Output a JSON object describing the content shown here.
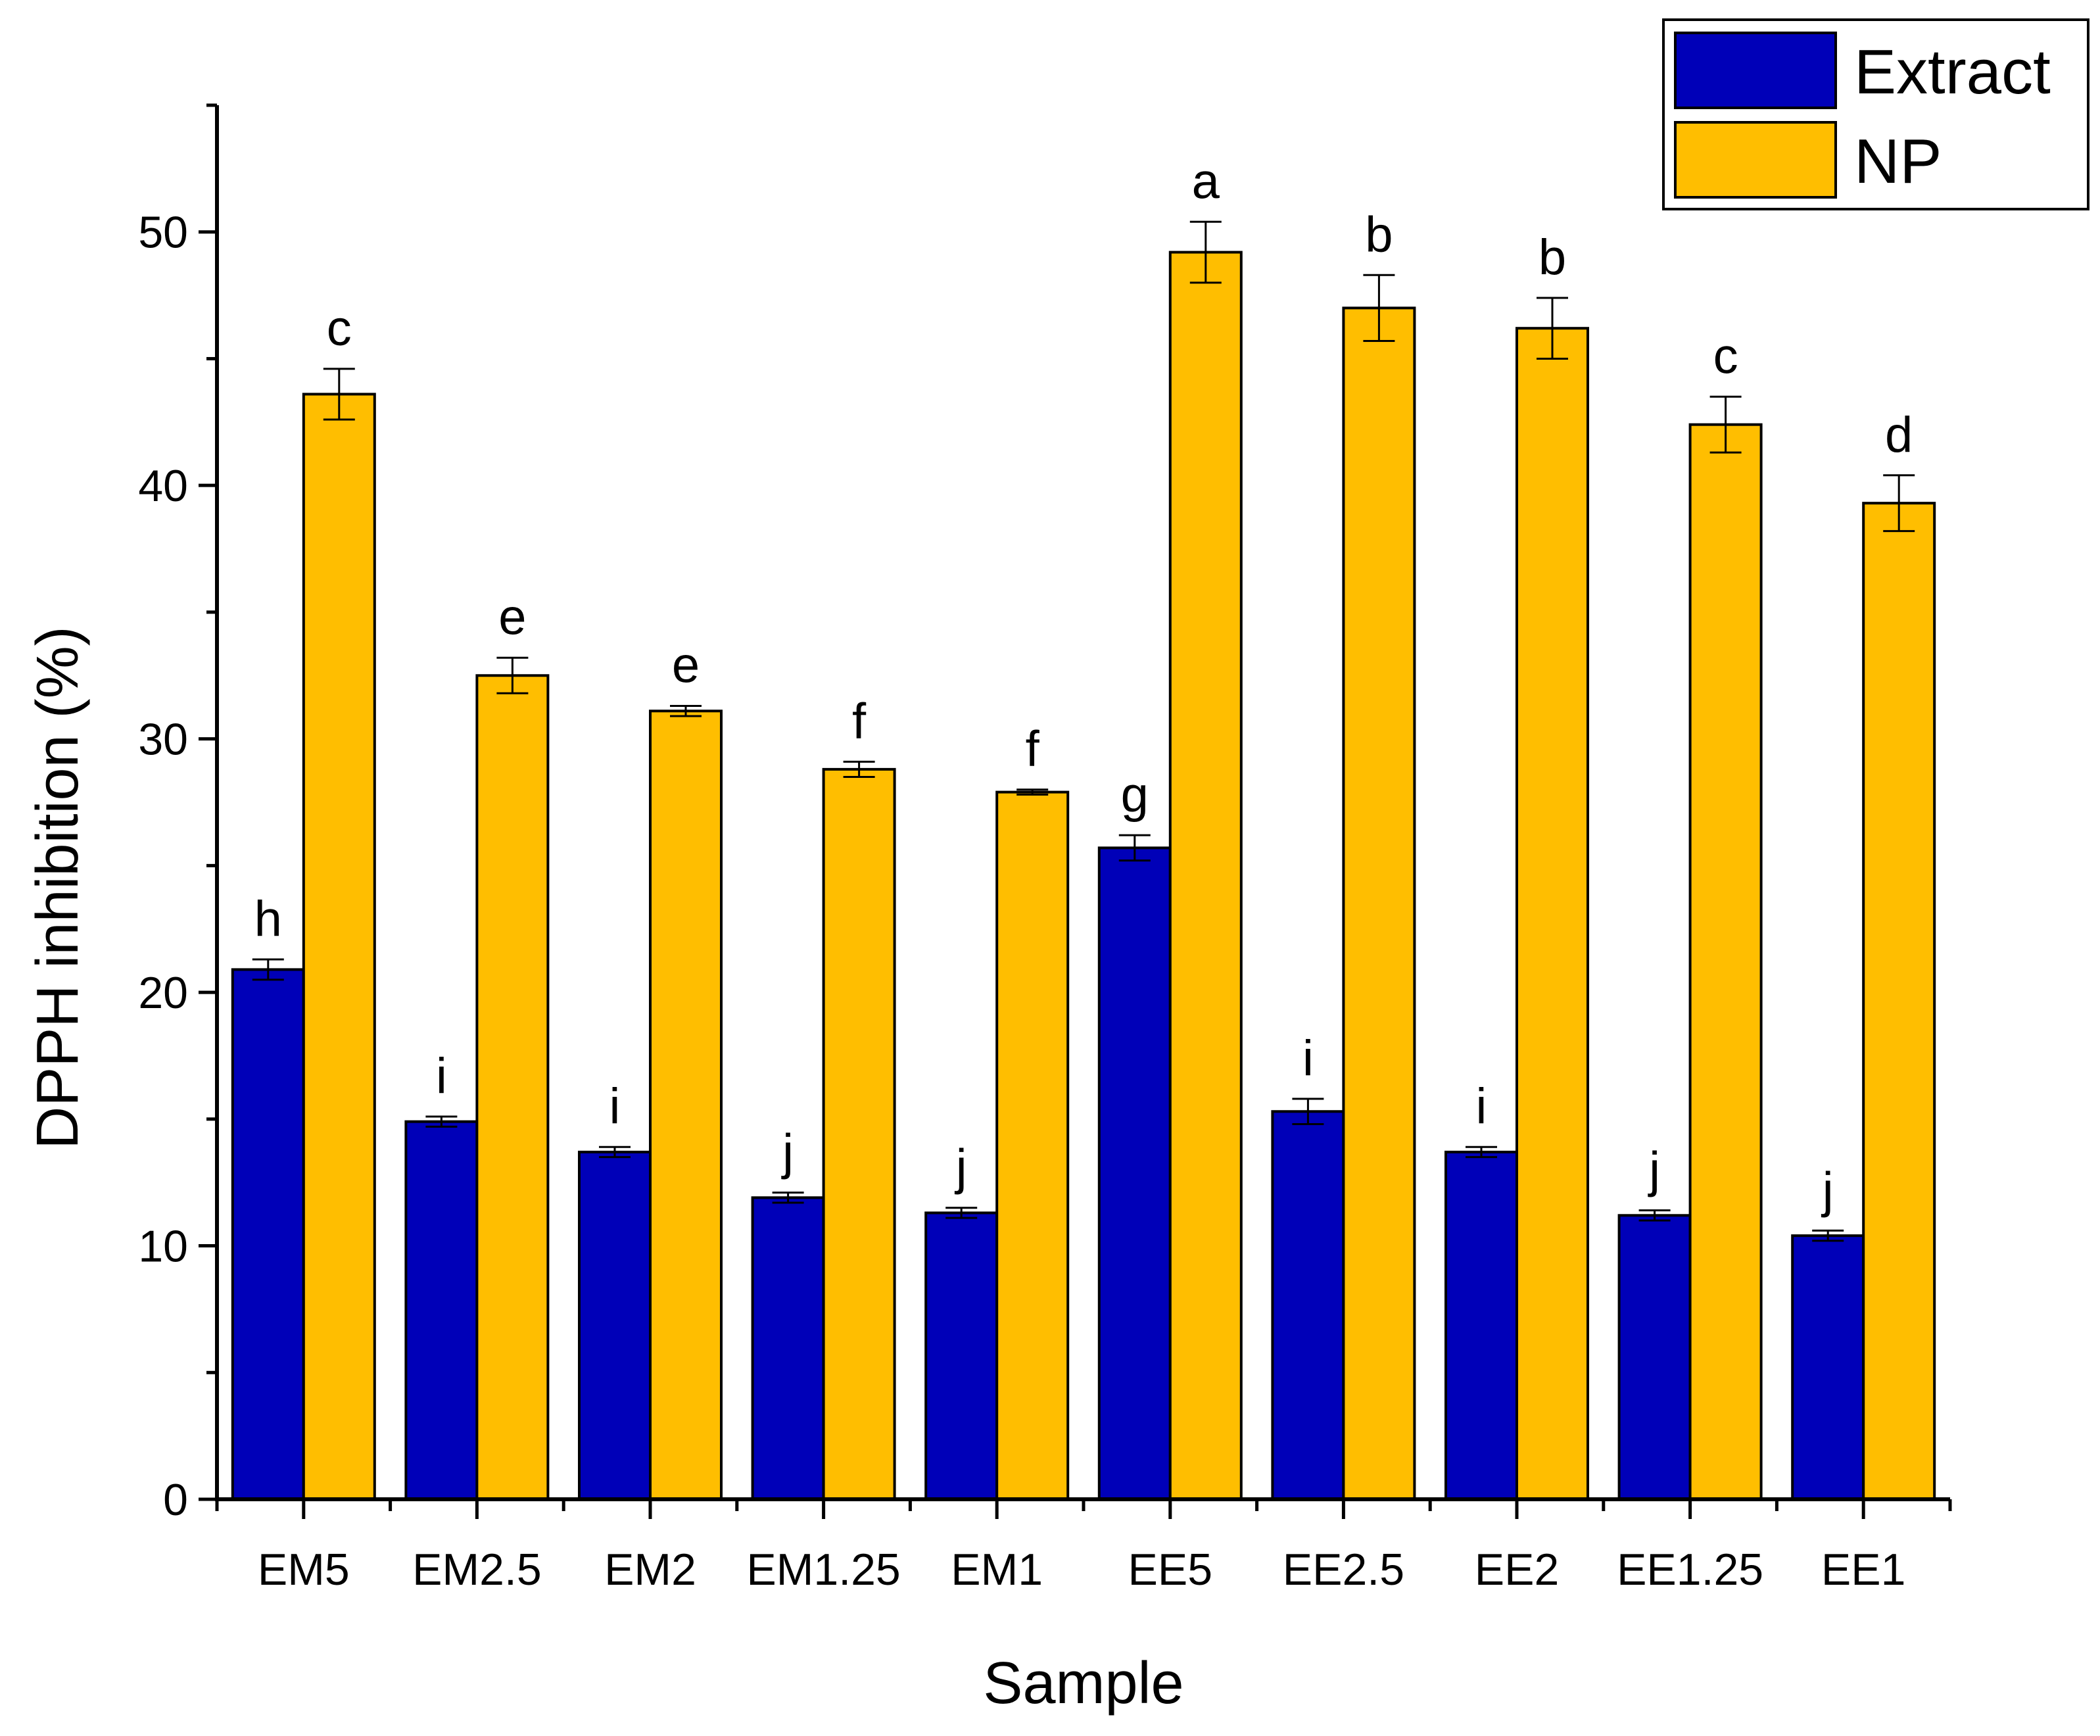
{
  "chart_data": {
    "type": "bar",
    "title": "",
    "xlabel": "Sample",
    "ylabel": "DPPH inhibition (%)",
    "ylim": [
      0,
      55
    ],
    "yticks": [
      0,
      10,
      20,
      30,
      40,
      50
    ],
    "categories": [
      "EM5",
      "EM2.5",
      "EM2",
      "EM1.25",
      "EM1",
      "EE5",
      "EE2.5",
      "EE2",
      "EE1.25",
      "EE1"
    ],
    "legend_position": "top-right",
    "series": [
      {
        "name": "Extract",
        "color": "#0000b8",
        "values": [
          20.9,
          14.9,
          13.7,
          11.9,
          11.3,
          25.7,
          15.3,
          13.7,
          11.2,
          10.4
        ],
        "errors": [
          0.4,
          0.2,
          0.2,
          0.2,
          0.2,
          0.5,
          0.5,
          0.2,
          0.2,
          0.2
        ],
        "letters": [
          "h",
          "i",
          "i",
          "j",
          "j",
          "g",
          "i",
          "i",
          "j",
          "j"
        ]
      },
      {
        "name": "NP",
        "color": "#ffbe00",
        "values": [
          43.6,
          32.5,
          31.1,
          28.8,
          27.9,
          49.2,
          47.0,
          46.2,
          42.4,
          39.3
        ],
        "errors": [
          1.0,
          0.7,
          0.2,
          0.3,
          0.1,
          1.2,
          1.3,
          1.2,
          1.1,
          1.1
        ],
        "letters": [
          "c",
          "e",
          "e",
          "f",
          "f",
          "a",
          "b",
          "b",
          "c",
          "d"
        ]
      }
    ]
  }
}
